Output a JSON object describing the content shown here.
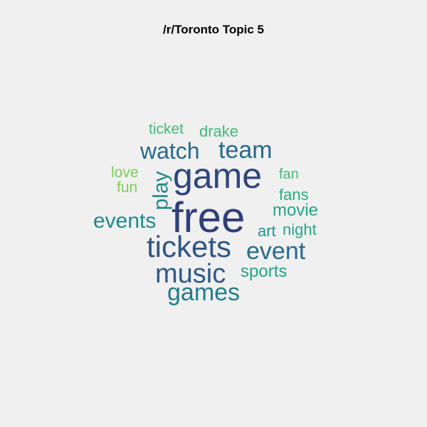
{
  "title": "/r/Toronto Topic 5",
  "words": [
    {
      "text": "free",
      "color": "#2f3f7c"
    },
    {
      "text": "game",
      "color": "#2f457d"
    },
    {
      "text": "tickets",
      "color": "#2f5584"
    },
    {
      "text": "music",
      "color": "#2e5a88"
    },
    {
      "text": "event",
      "color": "#27698b"
    },
    {
      "text": "games",
      "color": "#227c8b"
    },
    {
      "text": "team",
      "color": "#27698b"
    },
    {
      "text": "watch",
      "color": "#27698b"
    },
    {
      "text": "events",
      "color": "#1f8888"
    },
    {
      "text": "play",
      "color": "#23878a"
    },
    {
      "text": "sports",
      "color": "#25a38a"
    },
    {
      "text": "movie",
      "color": "#25a38a"
    },
    {
      "text": "night",
      "color": "#2aa487"
    },
    {
      "text": "art",
      "color": "#23918b"
    },
    {
      "text": "fans",
      "color": "#2eab83"
    },
    {
      "text": "fan",
      "color": "#42b97a"
    },
    {
      "text": "drake",
      "color": "#42b97a"
    },
    {
      "text": "ticket",
      "color": "#42b97a"
    },
    {
      "text": "love",
      "color": "#7ccd5a"
    },
    {
      "text": "fun",
      "color": "#7ccd5a"
    }
  ]
}
